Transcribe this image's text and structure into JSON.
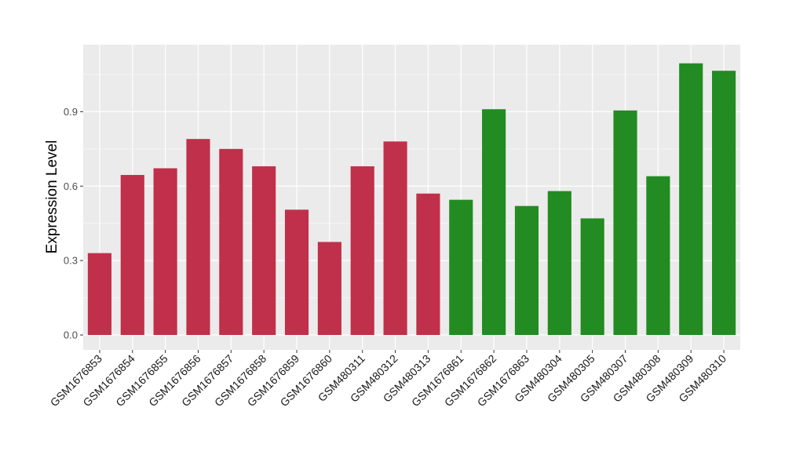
{
  "chart_data": {
    "type": "bar",
    "title": "",
    "xlabel": "",
    "ylabel": "Expression Level",
    "ylim": [
      -0.06,
      1.17
    ],
    "yticks": [
      0.0,
      0.3,
      0.6,
      0.9
    ],
    "ytick_labels": [
      "0.0",
      "0.3",
      "0.6",
      "0.9"
    ],
    "grid": true,
    "categories": [
      "GSM1676853",
      "GSM1676854",
      "GSM1676855",
      "GSM1676856",
      "GSM1676857",
      "GSM1676858",
      "GSM1676859",
      "GSM1676860",
      "GSM480311",
      "GSM480312",
      "GSM480313",
      "GSM1676861",
      "GSM1676862",
      "GSM1676863",
      "GSM480304",
      "GSM480305",
      "GSM480307",
      "GSM480308",
      "GSM480309",
      "GSM480310"
    ],
    "values": [
      0.33,
      0.645,
      0.672,
      0.79,
      0.75,
      0.68,
      0.505,
      0.375,
      0.68,
      0.78,
      0.57,
      0.545,
      0.91,
      0.52,
      0.58,
      0.47,
      0.905,
      0.64,
      1.095,
      1.065
    ],
    "groups": [
      "red",
      "red",
      "red",
      "red",
      "red",
      "red",
      "red",
      "red",
      "red",
      "red",
      "red",
      "green",
      "green",
      "green",
      "green",
      "green",
      "green",
      "green",
      "green",
      "green"
    ],
    "colors": {
      "red": "#c0304a",
      "green": "#228b22",
      "panel": "#ebebeb",
      "grid_major": "#ffffff",
      "grid_minor": "#f5f5f5"
    }
  }
}
